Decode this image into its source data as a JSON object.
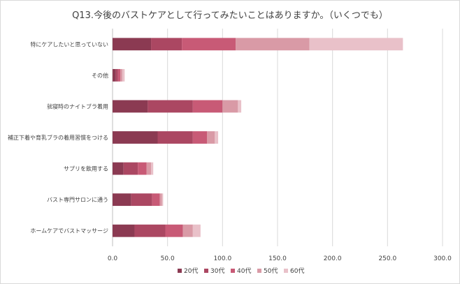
{
  "chart_data": {
    "type": "bar",
    "orientation": "horizontal",
    "stacked": true,
    "title": "Q13.今後のバストケアとして行ってみたいことはありますか。（いくつでも）",
    "categories": [
      "特にケアしたいと思っていない",
      "その他",
      "就寝時のナイトブラ着用",
      "補正下着や育乳ブラの着用習慣をつける",
      "サプリを飲用する",
      "バスト専門サロンに通う",
      "ホームケアでバストマッサージ"
    ],
    "series": [
      {
        "name": "20代",
        "color": "#8b3a52",
        "values": [
          35,
          3,
          32,
          41,
          10,
          17,
          20
        ]
      },
      {
        "name": "30代",
        "color": "#ab4762",
        "values": [
          28,
          2,
          41,
          32,
          13,
          19,
          28
        ]
      },
      {
        "name": "40代",
        "color": "#c85a76",
        "values": [
          49,
          2,
          27,
          13,
          8,
          7,
          16
        ]
      },
      {
        "name": "50代",
        "color": "#d99aa6",
        "values": [
          67,
          2,
          14,
          7,
          4,
          2,
          9
        ]
      },
      {
        "name": "60代",
        "color": "#e9c1c9",
        "values": [
          85,
          2,
          3,
          3,
          2,
          1,
          7
        ]
      }
    ],
    "xlim": [
      0,
      300
    ],
    "xticks": [
      "0.0",
      "50.0",
      "100.0",
      "150.0",
      "200.0",
      "250.0",
      "300.0"
    ],
    "grid": true,
    "legend": "bottom"
  }
}
